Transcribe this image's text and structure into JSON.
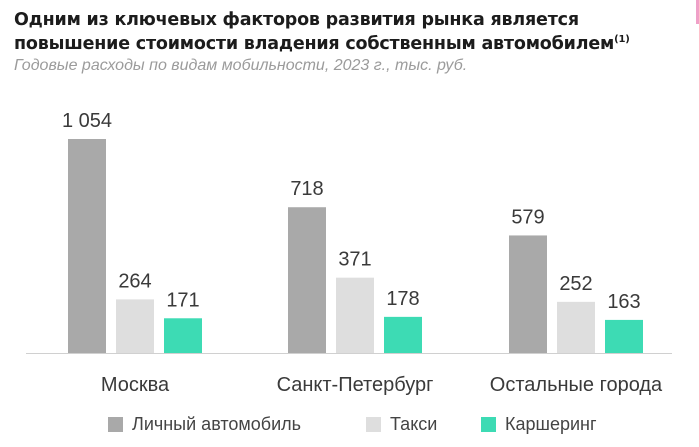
{
  "header": {
    "title": "Одним из ключевых факторов развития рынка является повышение стоимости владения собственным автомобилем",
    "footnote": "(1)",
    "subtitle": "Годовые расходы по видам мобильности, 2023 г., тыс. руб."
  },
  "chart_data": {
    "type": "bar",
    "categories": [
      "Москва",
      "Санкт-Петербург",
      "Остальные города"
    ],
    "series": [
      {
        "name": "Личный автомобиль",
        "values": [
          1054,
          718,
          579
        ],
        "labels": [
          "1 054",
          "718",
          "579"
        ],
        "color": "#a9a9a9"
      },
      {
        "name": "Такси",
        "values": [
          264,
          371,
          252
        ],
        "labels": [
          "264",
          "371",
          "252"
        ],
        "color": "#dedede"
      },
      {
        "name": "Каршеринг",
        "values": [
          171,
          178,
          163
        ],
        "labels": [
          "171",
          "178",
          "163"
        ],
        "color": "#3ddbb4"
      }
    ],
    "ylim": [
      0,
      1054
    ],
    "grid": false,
    "legend": "bottom"
  },
  "colors": {
    "axis": "#d0d0d0",
    "accent": "#f0a0c8"
  }
}
